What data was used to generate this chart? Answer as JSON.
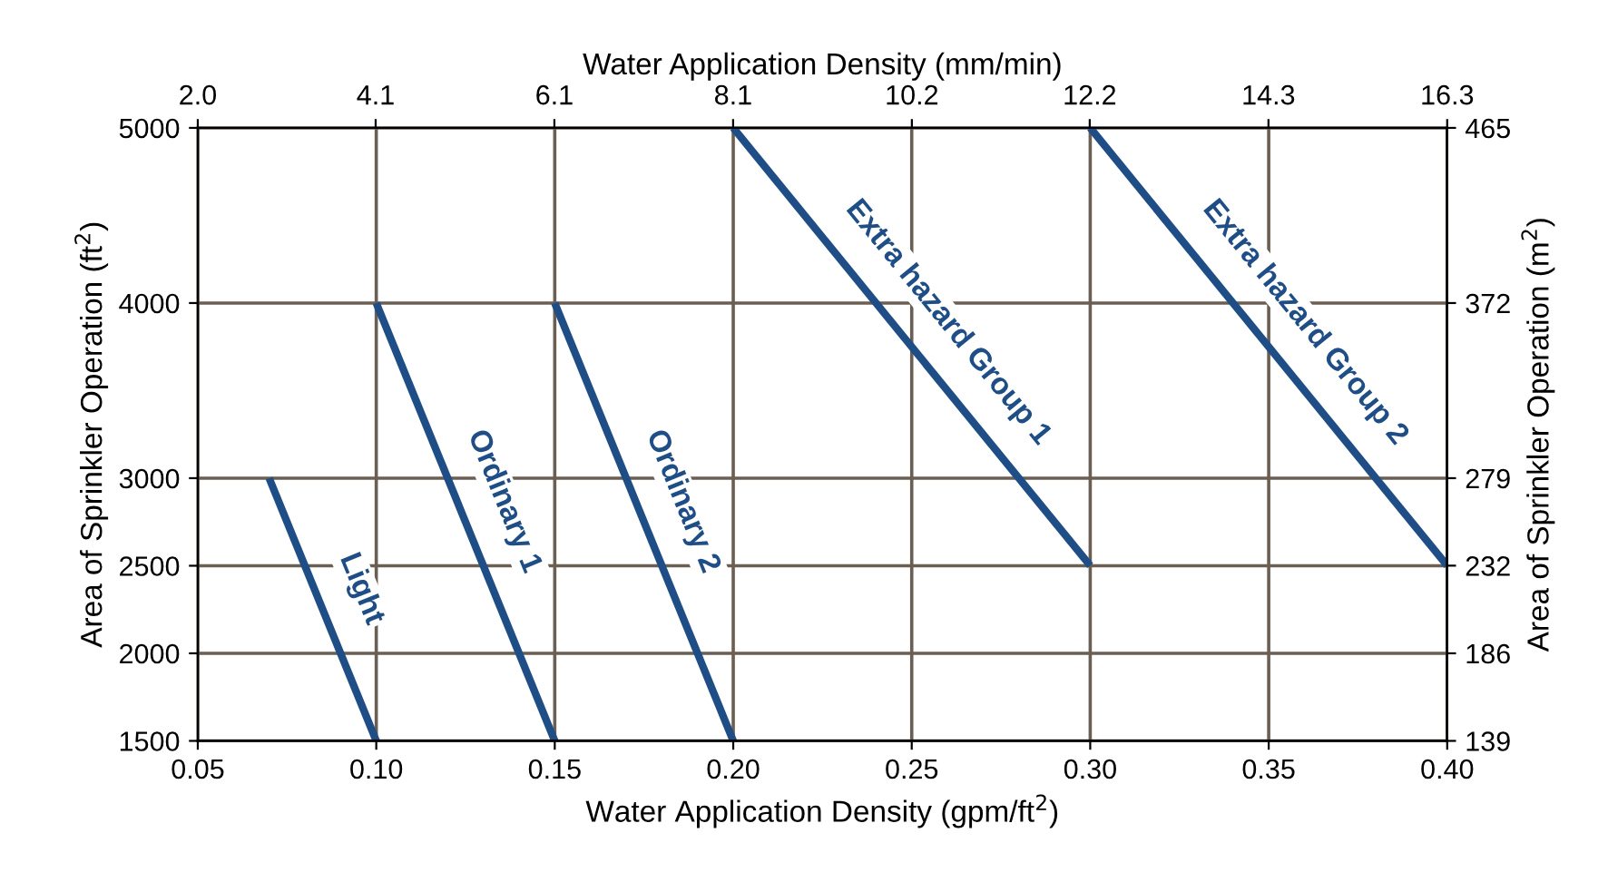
{
  "chart_data": {
    "type": "line",
    "xlabel": "Water Application Density (gpm/ft$^{2}$)",
    "ylabel": "Area of Sprinkler Operation (ft$^{2}$)",
    "x2label": "Water Application Density (mm/min)",
    "y2label": "Area of Sprinkler Operation (m$^{2}$)",
    "xlim": [
      0.05,
      0.4
    ],
    "xticks": [
      {
        "value": 0.05,
        "label": "0.05"
      },
      {
        "value": 0.1,
        "label": "0.10"
      },
      {
        "value": 0.15,
        "label": "0.15"
      },
      {
        "value": 0.2,
        "label": "0.20"
      },
      {
        "value": 0.25,
        "label": "0.25"
      },
      {
        "value": 0.3,
        "label": "0.30"
      },
      {
        "value": 0.35,
        "label": "0.35"
      },
      {
        "value": 0.4,
        "label": "0.40"
      }
    ],
    "ylim": [
      1500,
      5000
    ],
    "yticks": [
      1500,
      2000,
      2500,
      3000,
      4000,
      5000
    ],
    "x2lim": [
      2.04,
      16.3
    ],
    "x2ticks": [
      {
        "value": 2.04,
        "label": "2.0"
      },
      {
        "value": 4.07,
        "label": "4.1"
      },
      {
        "value": 6.11,
        "label": "6.1"
      },
      {
        "value": 8.15,
        "label": "8.1"
      },
      {
        "value": 10.19,
        "label": "10.2"
      },
      {
        "value": 12.22,
        "label": "12.2"
      },
      {
        "value": 14.26,
        "label": "14.3"
      },
      {
        "value": 16.3,
        "label": "16.3"
      }
    ],
    "y2lim": [
      139.35,
      464.5
    ],
    "y2ticks": [
      {
        "value": 139.35,
        "label": "139"
      },
      {
        "value": 185.8,
        "label": "186"
      },
      {
        "value": 232.3,
        "label": "232"
      },
      {
        "value": 278.7,
        "label": "279"
      },
      {
        "value": 371.6,
        "label": "372"
      },
      {
        "value": 464.5,
        "label": "465"
      }
    ],
    "grid": true,
    "line_style": "solid",
    "marker": "none",
    "series": [
      {
        "name": "Light",
        "color": "#1f4e86",
        "x": [
          0.07,
          0.1
        ],
        "values": [
          3000,
          1500
        ]
      },
      {
        "name": "Ordinary 1",
        "color": "#1f4e86",
        "x": [
          0.1,
          0.15
        ],
        "values": [
          4000,
          1500
        ]
      },
      {
        "name": "Ordinary 2",
        "color": "#1f4e86",
        "x": [
          0.15,
          0.2
        ],
        "values": [
          4000,
          1500
        ]
      },
      {
        "name": "Extra hazard Group 1",
        "color": "#1f4e86",
        "x": [
          0.2,
          0.3
        ],
        "values": [
          5000,
          2500
        ]
      },
      {
        "name": "Extra hazard Group 2",
        "color": "#1f4e86",
        "x": [
          0.3,
          0.4
        ],
        "values": [
          5000,
          2500
        ]
      }
    ]
  }
}
